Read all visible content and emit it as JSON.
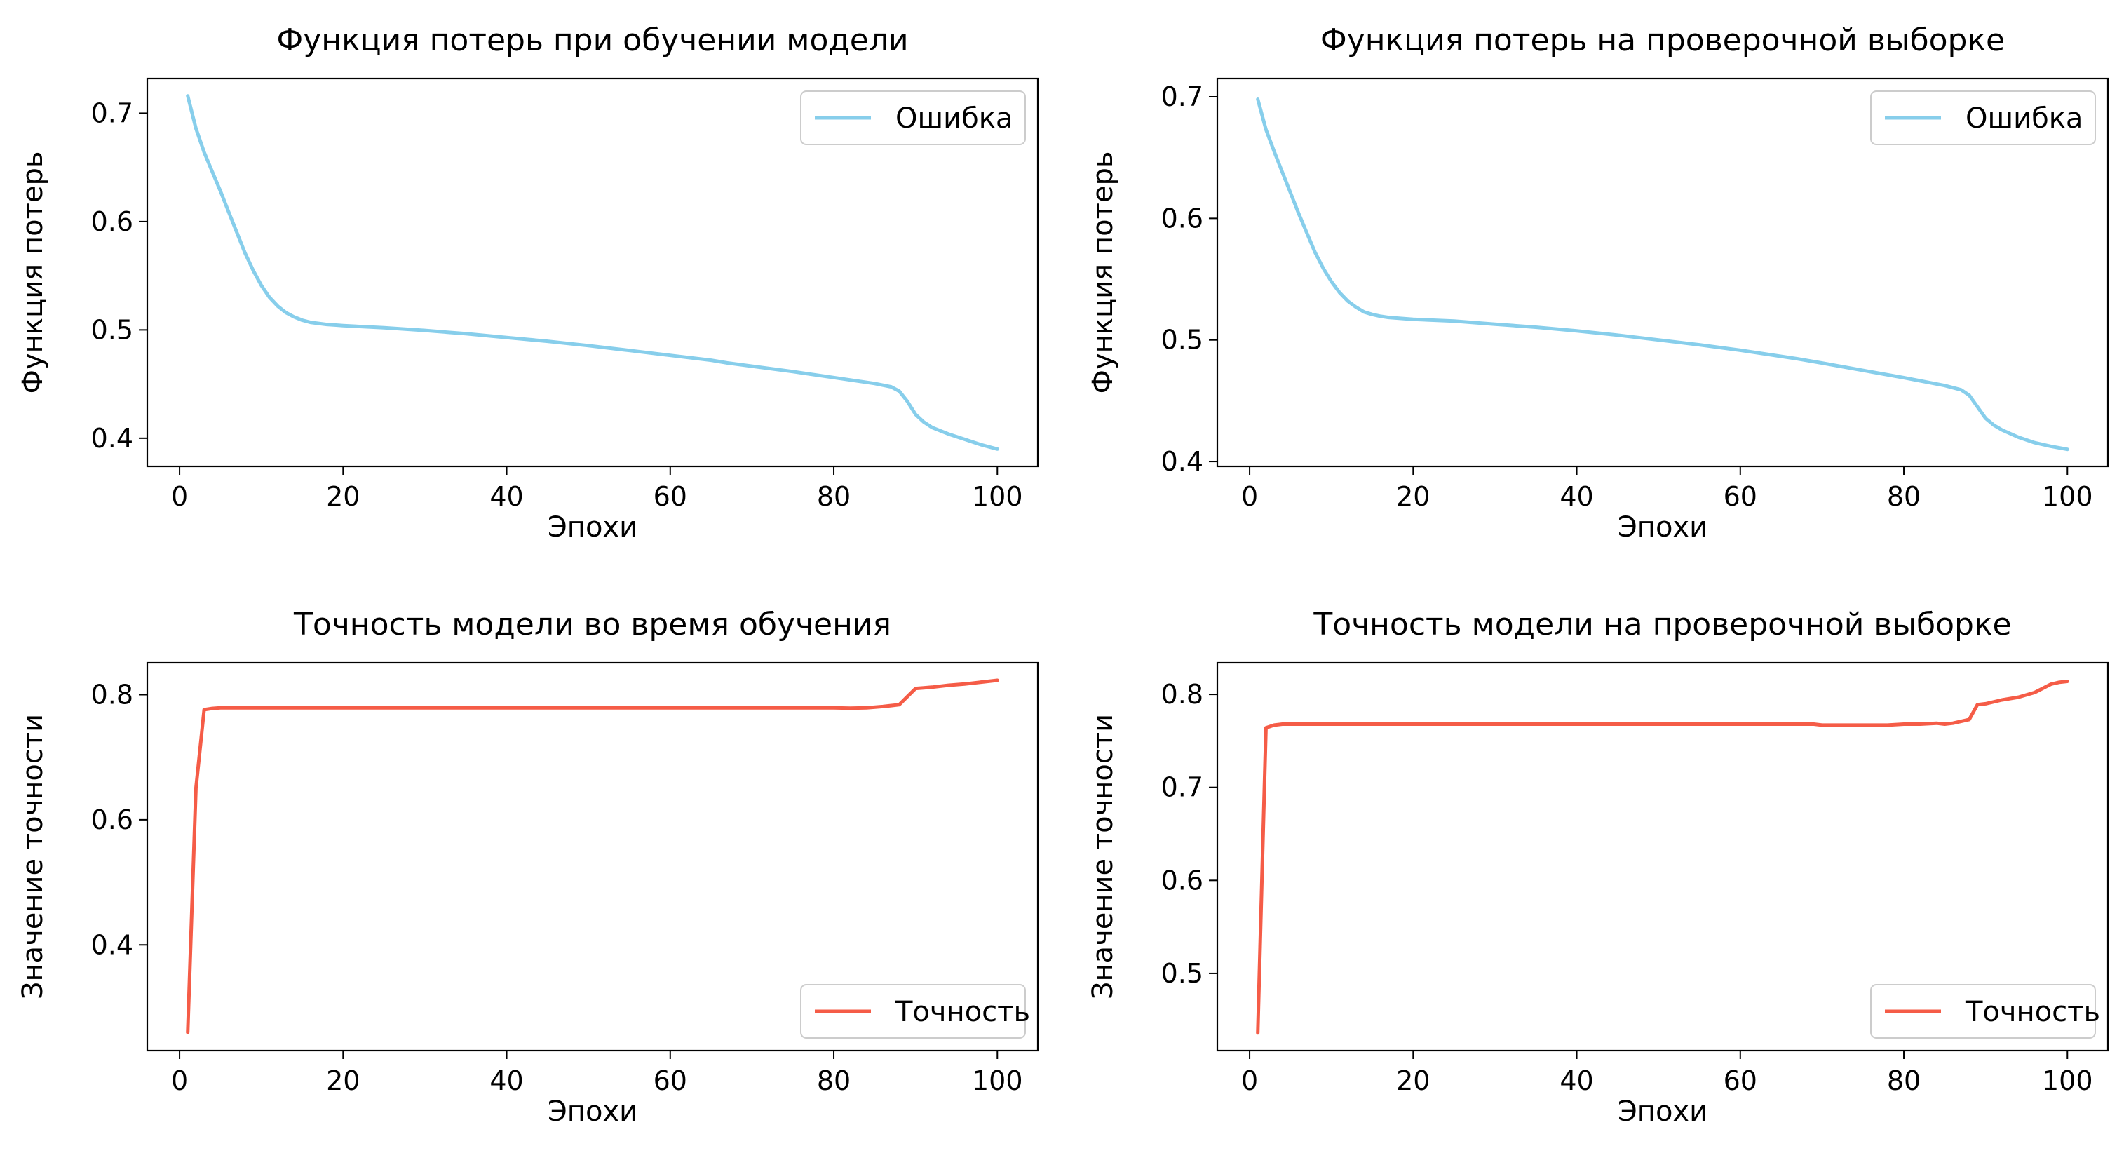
{
  "chart_data": [
    {
      "type": "line",
      "title": "Функция потерь при обучении модели",
      "xlabel": "Эпохи",
      "ylabel": "Функция потерь",
      "xlim": [
        -3.95,
        104.95
      ],
      "ylim": [
        0.374,
        0.732
      ],
      "xticks": [
        0,
        20,
        40,
        60,
        80,
        100
      ],
      "yticks": [
        0.4,
        0.5,
        0.6,
        0.7
      ],
      "grid": false,
      "legend": "top-right",
      "series": [
        {
          "name": "Ошибка",
          "color": "#87ceeb",
          "x": [
            1,
            2,
            3,
            4,
            5,
            6,
            7,
            8,
            9,
            10,
            11,
            12,
            13,
            14,
            15,
            16,
            17,
            18,
            19,
            20,
            25,
            30,
            35,
            40,
            45,
            50,
            55,
            60,
            65,
            67,
            70,
            75,
            80,
            85,
            87,
            88,
            89,
            90,
            91,
            92,
            94,
            96,
            98,
            100
          ],
          "values": [
            0.716,
            0.686,
            0.664,
            0.646,
            0.628,
            0.609,
            0.59,
            0.571,
            0.555,
            0.541,
            0.53,
            0.522,
            0.516,
            0.512,
            0.509,
            0.507,
            0.506,
            0.505,
            0.5045,
            0.504,
            0.502,
            0.4995,
            0.4965,
            0.493,
            0.4895,
            0.4855,
            0.481,
            0.4765,
            0.472,
            0.4695,
            0.4665,
            0.4615,
            0.456,
            0.4505,
            0.4475,
            0.4435,
            0.434,
            0.422,
            0.415,
            0.41,
            0.404,
            0.399,
            0.394,
            0.39
          ]
        }
      ]
    },
    {
      "type": "line",
      "title": "Функция потерь на проверочной выборке",
      "xlabel": "Эпохи",
      "ylabel": "Функция потерь",
      "xlim": [
        -3.95,
        104.95
      ],
      "ylim": [
        0.396,
        0.715
      ],
      "xticks": [
        0,
        20,
        40,
        60,
        80,
        100
      ],
      "yticks": [
        0.4,
        0.5,
        0.6,
        0.7
      ],
      "grid": false,
      "legend": "top-right",
      "series": [
        {
          "name": "Ошибка",
          "color": "#87ceeb",
          "x": [
            1,
            2,
            3,
            4,
            5,
            6,
            7,
            8,
            9,
            10,
            11,
            12,
            13,
            14,
            15,
            16,
            17,
            18,
            19,
            20,
            25,
            30,
            35,
            40,
            45,
            50,
            55,
            60,
            65,
            67,
            70,
            75,
            80,
            85,
            87,
            88,
            89,
            90,
            91,
            92,
            94,
            96,
            98,
            100
          ],
          "values": [
            0.698,
            0.673,
            0.655,
            0.638,
            0.621,
            0.604,
            0.588,
            0.572,
            0.559,
            0.548,
            0.539,
            0.532,
            0.527,
            0.523,
            0.521,
            0.5195,
            0.5185,
            0.518,
            0.5175,
            0.517,
            0.5155,
            0.513,
            0.5105,
            0.5075,
            0.504,
            0.5,
            0.496,
            0.4915,
            0.4865,
            0.4845,
            0.481,
            0.475,
            0.469,
            0.4625,
            0.459,
            0.4545,
            0.445,
            0.4355,
            0.43,
            0.426,
            0.42,
            0.4155,
            0.4125,
            0.41
          ]
        }
      ]
    },
    {
      "type": "line",
      "title": "Точность модели во время обучения",
      "xlabel": "Эпохи",
      "ylabel": "Значение точности",
      "xlim": [
        -3.95,
        104.95
      ],
      "ylim": [
        0.231,
        0.851
      ],
      "xticks": [
        0,
        20,
        40,
        60,
        80,
        100
      ],
      "yticks": [
        0.4,
        0.6,
        0.8
      ],
      "grid": false,
      "legend": "bottom-right",
      "series": [
        {
          "name": "Точность",
          "color": "#f55c47",
          "x": [
            1,
            2,
            3,
            4,
            5,
            10,
            20,
            30,
            40,
            50,
            60,
            70,
            80,
            82,
            84,
            86,
            88,
            89,
            90,
            91,
            92,
            94,
            96,
            98,
            100
          ],
          "values": [
            0.26,
            0.65,
            0.776,
            0.778,
            0.779,
            0.779,
            0.779,
            0.779,
            0.779,
            0.779,
            0.779,
            0.779,
            0.779,
            0.7785,
            0.779,
            0.781,
            0.784,
            0.797,
            0.81,
            0.811,
            0.812,
            0.815,
            0.817,
            0.82,
            0.823
          ]
        }
      ]
    },
    {
      "type": "line",
      "title": "Точность модели на проверочной выборке",
      "xlabel": "Эпохи",
      "ylabel": "Значение точности",
      "xlim": [
        -3.95,
        104.95
      ],
      "ylim": [
        0.417,
        0.834
      ],
      "xticks": [
        0,
        20,
        40,
        60,
        80,
        100
      ],
      "yticks": [
        0.5,
        0.6,
        0.7,
        0.8
      ],
      "grid": false,
      "legend": "bottom-right",
      "series": [
        {
          "name": "Точность",
          "color": "#f55c47",
          "x": [
            1,
            2,
            3,
            4,
            10,
            20,
            30,
            40,
            50,
            60,
            69,
            70,
            78,
            80,
            82,
            84,
            85,
            86,
            88,
            89,
            90,
            92,
            94,
            96,
            98,
            99,
            100
          ],
          "values": [
            0.436,
            0.764,
            0.767,
            0.768,
            0.768,
            0.768,
            0.768,
            0.768,
            0.768,
            0.768,
            0.768,
            0.767,
            0.767,
            0.768,
            0.768,
            0.769,
            0.768,
            0.769,
            0.773,
            0.789,
            0.79,
            0.794,
            0.797,
            0.802,
            0.811,
            0.813,
            0.814
          ]
        }
      ]
    }
  ]
}
